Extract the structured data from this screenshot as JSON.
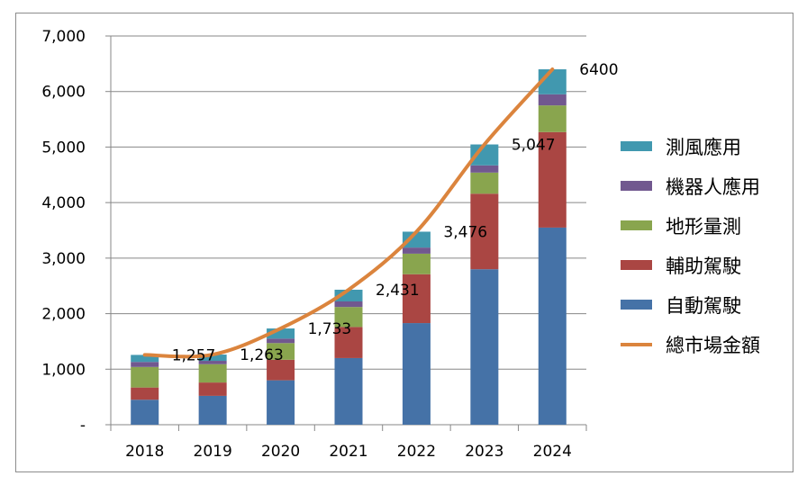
{
  "chart_data": {
    "type": "bar",
    "stacked": true,
    "categories": [
      "2018",
      "2019",
      "2020",
      "2021",
      "2022",
      "2023",
      "2024"
    ],
    "ylim": [
      0,
      7000
    ],
    "yticks": [
      0,
      1000,
      2000,
      3000,
      4000,
      5000,
      6000,
      7000
    ],
    "ytick_labels": [
      "-",
      "1,000",
      "2,000",
      "3,000",
      "4,000",
      "5,000",
      "6,000",
      "7,000"
    ],
    "grid": true,
    "legend_position": "right",
    "series": [
      {
        "name": "自動駕駛",
        "color": "#4572a7",
        "values": [
          450,
          520,
          800,
          1200,
          1830,
          2800,
          3550
        ]
      },
      {
        "name": "輔助駕駛",
        "color": "#aa4643",
        "values": [
          220,
          240,
          370,
          560,
          880,
          1360,
          1720
        ]
      },
      {
        "name": "地形量測",
        "color": "#89a54e",
        "values": [
          370,
          330,
          300,
          360,
          370,
          380,
          480
        ]
      },
      {
        "name": "機器人應用",
        "color": "#71588f",
        "values": [
          90,
          60,
          80,
          100,
          110,
          130,
          200
        ]
      },
      {
        "name": "測風應用",
        "color": "#4198af",
        "values": [
          127,
          113,
          183,
          211,
          286,
          377,
          450
        ]
      }
    ],
    "line": {
      "name": "總市場金額",
      "color": "#db843d",
      "values": [
        1257,
        1263,
        1733,
        2431,
        3476,
        5047,
        6400
      ],
      "labels": [
        "1,257",
        "1,263",
        "1,733",
        "2,431",
        "3,476",
        "5,047",
        "6400"
      ]
    }
  }
}
